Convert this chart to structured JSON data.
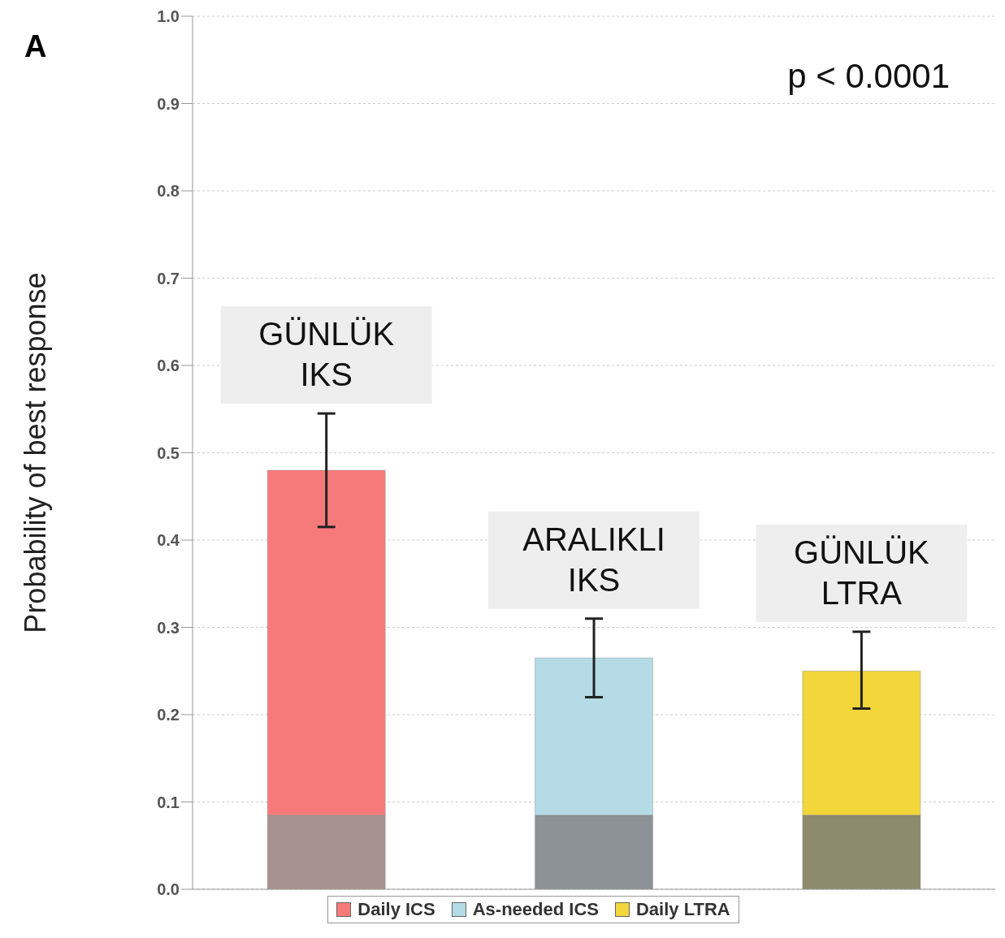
{
  "chart_data": {
    "type": "bar",
    "title": "A",
    "ylabel": "Probability of best response",
    "categories": [
      null,
      null,
      null
    ],
    "stacked": true,
    "series": [
      {
        "colors": [
          "#a89290",
          "#8c9296",
          "#8c8a6c"
        ],
        "values": [
          0.085,
          0.085,
          0.085
        ]
      },
      {
        "name": "Daily ICS",
        "color": "#f77a7a",
        "values": [
          0.395,
          null,
          null
        ],
        "errors": [
          [
            0.415,
            0.545
          ],
          null,
          null
        ]
      },
      {
        "name": "As-needed ICS",
        "color": "#b5dbe6",
        "values": [
          null,
          0.18,
          null
        ],
        "errors": [
          null,
          [
            0.22,
            0.31
          ],
          null
        ]
      },
      {
        "name": "Daily LTRA",
        "color": "#f2d63a",
        "values": [
          null,
          null,
          0.165
        ],
        "errors": [
          null,
          null,
          [
            0.207,
            0.295
          ]
        ]
      }
    ],
    "annotations": [
      "GÜNLÜK IKS",
      "ARALIKLI IKS",
      "GÜNLÜK LTRA",
      "p < 0.0001"
    ],
    "ylim": [
      0,
      1
    ],
    "yticks": [
      {
        "value": 0,
        "label": "0.0"
      },
      {
        "value": 0.1,
        "label": "0.1"
      },
      {
        "value": 0.2,
        "label": "0.2"
      },
      {
        "value": 0.3,
        "label": "0.3"
      },
      {
        "value": 0.4,
        "label": "0.4"
      },
      {
        "value": 0.5,
        "label": "0.5"
      },
      {
        "value": 0.6,
        "label": "0.6"
      },
      {
        "value": 0.7,
        "label": "0.7"
      },
      {
        "value": 0.8,
        "label": "0.8"
      },
      {
        "value": 0.9,
        "label": "0.9"
      },
      {
        "value": 1,
        "label": "1.0"
      }
    ],
    "grid": "y",
    "legend": "bottom",
    "tick_labels": "y"
  }
}
